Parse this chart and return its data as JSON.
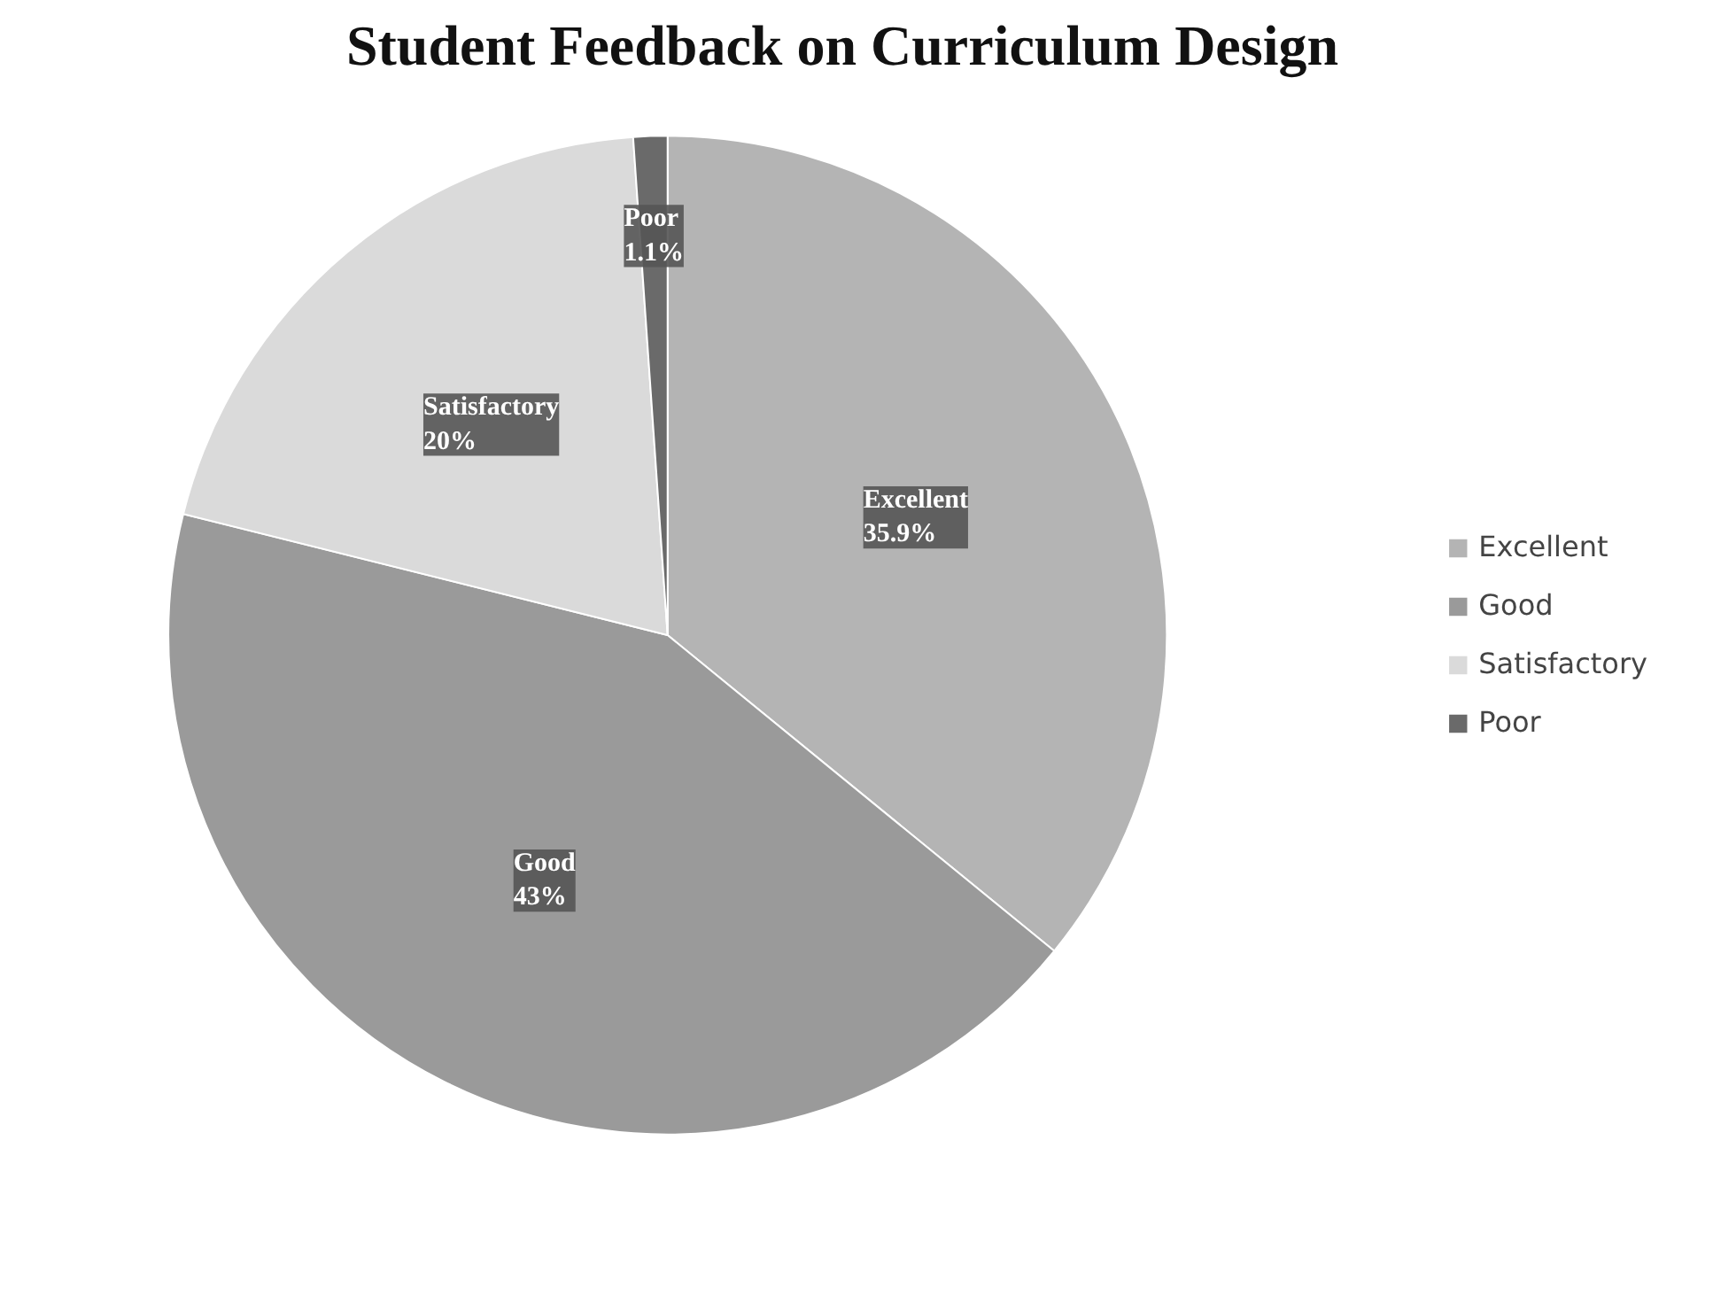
{
  "chart_data": {
    "type": "pie",
    "title": "Student Feedback on Curriculum Design",
    "categories": [
      "Excellent",
      "Good",
      "Satisfactory",
      "Poor"
    ],
    "values": [
      35.9,
      43,
      20,
      1.1
    ],
    "value_labels": [
      "35.9%",
      "43%",
      "20%",
      "1.1%"
    ],
    "colors": [
      "#b4b4b4",
      "#9a9a9a",
      "#dadada",
      "#6a6a6a"
    ],
    "legend": "right"
  }
}
